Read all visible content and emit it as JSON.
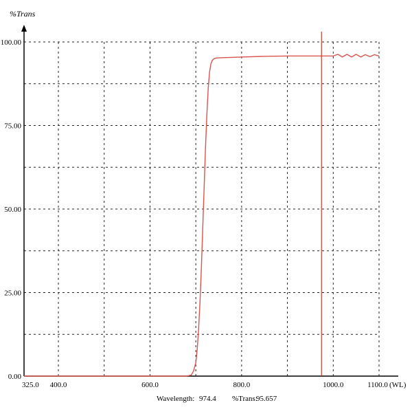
{
  "chart_data": {
    "type": "line",
    "title": "",
    "ylabel": "%Trans",
    "xlabel": "(WL)",
    "xlim": [
      325.0,
      1100.0
    ],
    "ylim": [
      0.0,
      100.0
    ],
    "x_tick_labels": [
      {
        "value": 325.0,
        "label": "325.0"
      },
      {
        "value": 400.0,
        "label": "400.0"
      },
      {
        "value": 600.0,
        "label": "600.0"
      },
      {
        "value": 800.0,
        "label": "800.0"
      },
      {
        "value": 1000.0,
        "label": "1000.0"
      },
      {
        "value": 1100.0,
        "label": "1100.0"
      }
    ],
    "y_tick_labels": [
      {
        "value": 0.0,
        "label": "0.00"
      },
      {
        "value": 25.0,
        "label": "25.00"
      },
      {
        "value": 50.0,
        "label": "50.00"
      },
      {
        "value": 75.0,
        "label": "75.00"
      },
      {
        "value": 100.0,
        "label": "100.00"
      }
    ],
    "grid_x": [
      400,
      500,
      600,
      700,
      800,
      900,
      1000,
      1100
    ],
    "grid_y": [
      12.5,
      25,
      37.5,
      50,
      62.5,
      75,
      87.5,
      100
    ],
    "grid": true,
    "series": [
      {
        "color": "#d9534f",
        "x": [
          325,
          400,
          500,
          600,
          680,
          690,
          695,
          700,
          703,
          706,
          709,
          712,
          715,
          718,
          721,
          724,
          727,
          730,
          733,
          736,
          740,
          745,
          760,
          780,
          800,
          850,
          900,
          950,
          1000,
          1010,
          1020,
          1030,
          1040,
          1050,
          1060,
          1070,
          1080,
          1090,
          1100
        ],
        "y": [
          0,
          0,
          0,
          0,
          0,
          0.3,
          1.5,
          4,
          8,
          14,
          22,
          32,
          44,
          56,
          68,
          78,
          86,
          91,
          93.5,
          94.5,
          95,
          95.2,
          95.3,
          95.4,
          95.5,
          95.7,
          95.8,
          95.8,
          95.8,
          96.3,
          95.5,
          96.3,
          95.5,
          96.3,
          95.5,
          96.2,
          95.6,
          96.2,
          95.8
        ]
      }
    ],
    "cursor": {
      "wavelength": 974.4,
      "color": "#c0392b"
    }
  },
  "readout": {
    "wavelength_label": "Wavelength:",
    "wavelength_value": "974.4",
    "trans_label": "%Trans:",
    "trans_value": "95.657"
  }
}
